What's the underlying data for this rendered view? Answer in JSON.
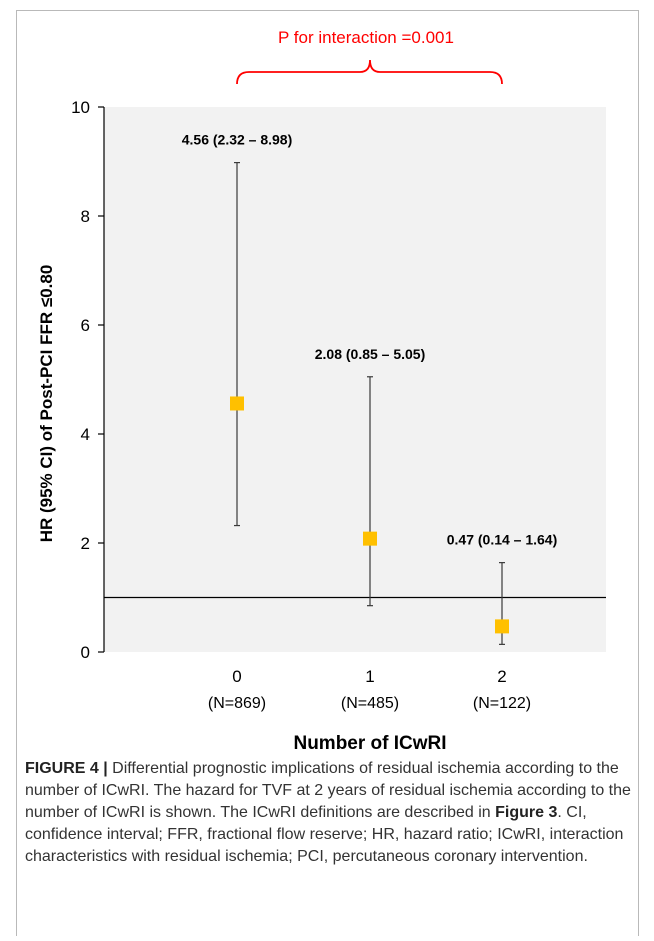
{
  "chart_data": {
    "type": "scatter",
    "subtype": "forest-plot",
    "title": "",
    "xlabel": "Number of ICwRI",
    "ylabel": "HR (95% CI) of Post-PCI FFR ≤0.80",
    "ylim": [
      0,
      10
    ],
    "yticks": [
      0,
      2,
      4,
      6,
      8,
      10
    ],
    "categories": [
      "0",
      "1",
      "2"
    ],
    "category_sublabels": [
      "(N=869)",
      "(N=485)",
      "(N=122)"
    ],
    "series": [
      {
        "values": [
          4.56,
          2.08,
          0.47
        ],
        "lower": [
          2.32,
          0.85,
          0.14
        ],
        "upper": [
          8.98,
          5.05,
          1.64
        ],
        "point_labels": [
          "4.56 (2.32 – 8.98)",
          "2.08 (0.85 – 5.05)",
          "0.47 (0.14 – 1.64)"
        ],
        "color": "#ffc000"
      }
    ],
    "reference_line": 1,
    "annotation": "P for interaction =0.001",
    "annotation_color": "#ff0000",
    "grid": false,
    "plot_background": "#f2f2f2"
  },
  "caption": {
    "label": "FIGURE 4 |",
    "text_1": " Differential prognostic implications of residual ischemia according to the number of ICwRI. The hazard for TVF at 2 years of residual ischemia according to the number of ICwRI is shown. The ICwRI definitions are described in ",
    "ref": "Figure 3",
    "text_2": ". CI, confidence interval; FFR, fractional flow reserve; HR, hazard ratio; ICwRI, interaction characteristics with residual ischemia; PCI, percutaneous coronary intervention."
  }
}
